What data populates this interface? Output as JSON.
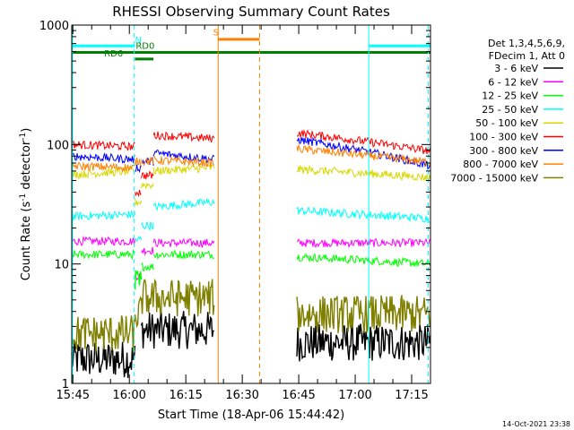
{
  "chart_data": {
    "type": "line",
    "title": "RHESSI Observing Summary Count Rates",
    "xlabel": "Start Time (18-Apr-06 15:44:42)",
    "ylabel_main": "Count Rate (s",
    "ylabel_sup1": "-1",
    "ylabel_mid": " detector",
    "ylabel_sup2": "-1",
    "ylabel_end": ")",
    "ylog": true,
    "ylim": [
      1,
      1000
    ],
    "xlim_min": [
      944.7,
      1040
    ],
    "x_ticks": [
      {
        "label": "15:45",
        "min": 945
      },
      {
        "label": "16:00",
        "min": 960
      },
      {
        "label": "16:15",
        "min": 975
      },
      {
        "label": "16:30",
        "min": 990
      },
      {
        "label": "16:45",
        "min": 1005
      },
      {
        "label": "17:00",
        "min": 1020
      },
      {
        "label": "17:15",
        "min": 1035
      }
    ],
    "y_ticks": [
      {
        "label": "1",
        "v": 1
      },
      {
        "label": "10",
        "v": 10
      },
      {
        "label": "100",
        "v": 100
      },
      {
        "label": "1000",
        "v": 1000
      }
    ],
    "legend_header": [
      "Det 1,3,4,5,6,9,",
      "FDecim 1, Att 0"
    ],
    "legend_position": "right",
    "timestamp": "14-Oct-2021 23:38",
    "series": [
      {
        "name": "3 - 6 keV",
        "color": "#000000",
        "segments": [
          {
            "x": [
              944.7,
              961.5
            ],
            "y": [
              1.6,
              1.6
            ]
          },
          {
            "x": [
              963.2,
              982.5
            ],
            "y": [
              2.8,
              2.8
            ]
          },
          {
            "x": [
              1004.5,
              1040
            ],
            "y": [
              2.2,
              2.2
            ]
          }
        ]
      },
      {
        "name": "6 - 12 keV",
        "color": "#ff00ff",
        "segments": [
          {
            "x": [
              944.7,
              961.5
            ],
            "y": [
              15.5,
              15.5
            ]
          },
          {
            "x": [
              961.5,
              963.2
            ],
            "y": [
              8,
              8
            ]
          },
          {
            "x": [
              963.2,
              966.4
            ],
            "y": [
              13,
              13
            ]
          },
          {
            "x": [
              966.4,
              982.5
            ],
            "y": [
              15,
              15
            ]
          },
          {
            "x": [
              1004.5,
              1040
            ],
            "y": [
              15,
              15
            ]
          }
        ]
      },
      {
        "name": "12 - 25 keV",
        "color": "#00ff00",
        "segments": [
          {
            "x": [
              944.7,
              961.5
            ],
            "y": [
              12,
              12
            ]
          },
          {
            "x": [
              961.5,
              963.2
            ],
            "y": [
              6.5,
              6.5
            ]
          },
          {
            "x": [
              963.2,
              966.4
            ],
            "y": [
              9.5,
              9.5
            ]
          },
          {
            "x": [
              966.4,
              982.5
            ],
            "y": [
              12,
              12
            ]
          },
          {
            "x": [
              1004.5,
              1040
            ],
            "y": [
              11.5,
              10
            ]
          }
        ]
      },
      {
        "name": "25 - 50 keV",
        "color": "#00ffff",
        "segments": [
          {
            "x": [
              944.7,
              961.5
            ],
            "y": [
              25,
              26
            ]
          },
          {
            "x": [
              961.5,
              963.2
            ],
            "y": [
              16,
              16
            ]
          },
          {
            "x": [
              963.2,
              966.4
            ],
            "y": [
              21,
              21
            ]
          },
          {
            "x": [
              966.4,
              982.5
            ],
            "y": [
              30,
              33
            ]
          },
          {
            "x": [
              1004.5,
              1040
            ],
            "y": [
              28,
              24
            ]
          }
        ]
      },
      {
        "name": "50 - 100 keV",
        "color": "#d8d800",
        "segments": [
          {
            "x": [
              944.7,
              961.5
            ],
            "y": [
              56,
              60
            ]
          },
          {
            "x": [
              961.5,
              963.2
            ],
            "y": [
              33,
              33
            ]
          },
          {
            "x": [
              963.2,
              966.4
            ],
            "y": [
              46,
              46
            ]
          },
          {
            "x": [
              966.4,
              982.5
            ],
            "y": [
              60,
              64
            ]
          },
          {
            "x": [
              1004.5,
              1040
            ],
            "y": [
              62,
              53
            ]
          }
        ]
      },
      {
        "name": "100 - 300 keV",
        "color": "#ff0000",
        "segments": [
          {
            "x": [
              944.7,
              961.5
            ],
            "y": [
              100,
              96
            ]
          },
          {
            "x": [
              961.5,
              963.2
            ],
            "y": [
              40,
              40
            ]
          },
          {
            "x": [
              963.2,
              966.4
            ],
            "y": [
              55,
              55
            ]
          },
          {
            "x": [
              966.4,
              982.5
            ],
            "y": [
              120,
              112
            ]
          },
          {
            "x": [
              1004.5,
              1040
            ],
            "y": [
              125,
              88
            ]
          }
        ]
      },
      {
        "name": "300 - 800 keV",
        "color": "#0000ff",
        "segments": [
          {
            "x": [
              944.7,
              961.5
            ],
            "y": [
              80,
              75
            ]
          },
          {
            "x": [
              961.5,
              963.2
            ],
            "y": [
              64,
              64
            ]
          },
          {
            "x": [
              963.2,
              966.4
            ],
            "y": [
              72,
              72
            ]
          },
          {
            "x": [
              966.4,
              982.5
            ],
            "y": [
              85,
              75
            ]
          },
          {
            "x": [
              1004.5,
              1040
            ],
            "y": [
              110,
              66
            ]
          }
        ]
      },
      {
        "name": "800 - 7000 keV",
        "color": "#ff8000",
        "segments": [
          {
            "x": [
              944.7,
              961.5
            ],
            "y": [
              66,
              64
            ]
          },
          {
            "x": [
              961.5,
              963.2
            ],
            "y": [
              72,
              72
            ]
          },
          {
            "x": [
              963.2,
              966.4
            ],
            "y": [
              73,
              73
            ]
          },
          {
            "x": [
              966.4,
              982.5
            ],
            "y": [
              74,
              70
            ]
          },
          {
            "x": [
              1004.5,
              1040
            ],
            "y": [
              92,
              71
            ]
          }
        ]
      },
      {
        "name": "7000 - 15000 keV",
        "color": "#808000",
        "segments": [
          {
            "x": [
              944.7,
              961.5
            ],
            "y": [
              2.6,
              2.6
            ]
          },
          {
            "x": [
              961.5,
              963.2
            ],
            "y": [
              3.8,
              3.8
            ]
          },
          {
            "x": [
              963.2,
              982.5
            ],
            "y": [
              5.2,
              5.2
            ]
          },
          {
            "x": [
              1004.5,
              1040
            ],
            "y": [
              3.8,
              3.8
            ]
          }
        ]
      }
    ],
    "flags": [
      {
        "label": "N",
        "color": "#00ffff",
        "y": 670,
        "ranges": [
          [
            944.7,
            961.5
          ],
          [
            1023.7,
            1040
          ]
        ]
      },
      {
        "label": "S",
        "color": "#ff8000",
        "y": 760,
        "ranges": [
          [
            983.6,
            994.6
          ]
        ]
      },
      {
        "label": "RD0",
        "color": "#008000",
        "y": 590,
        "ranges": [
          [
            944.7,
            1040
          ]
        ]
      },
      {
        "label": "RD6",
        "color": "#008000",
        "y": 520,
        "ranges": [
          [
            961.5,
            966.4
          ]
        ]
      }
    ],
    "flag_labels": [
      {
        "text": "N",
        "color": "#00ffff",
        "x": 962.4,
        "y": 670
      },
      {
        "text": "RD0",
        "color": "#008000",
        "x": 964.2,
        "y": 600
      },
      {
        "text": "RD6",
        "color": "#008000",
        "x": 955.8,
        "y": 520
      },
      {
        "text": "S",
        "color": "#ff8000",
        "x": 983.0,
        "y": 780
      }
    ],
    "vlines": [
      {
        "x": 944.9,
        "color": "#00ffff",
        "dash": false
      },
      {
        "x": 961.3,
        "color": "#00ffff",
        "dash": true
      },
      {
        "x": 983.6,
        "color": "#ff8000",
        "dash": false
      },
      {
        "x": 994.6,
        "color": "#ff8000",
        "dash": true
      },
      {
        "x": 1023.6,
        "color": "#00ffff",
        "dash": false
      },
      {
        "x": 1039.4,
        "color": "#00ffff",
        "dash": true
      }
    ]
  }
}
